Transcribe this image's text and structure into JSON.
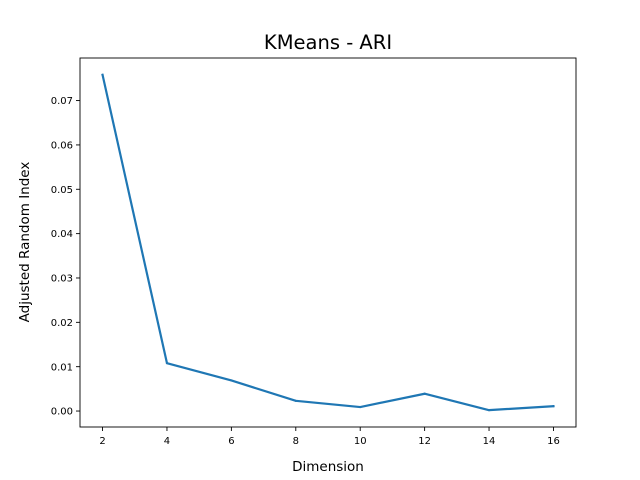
{
  "chart_data": {
    "type": "line",
    "title": "KMeans - ARI",
    "xlabel": "Dimension",
    "ylabel": "Adjusted Random Index",
    "x": [
      2,
      4,
      6,
      8,
      10,
      12,
      14,
      16
    ],
    "series": [
      {
        "values": [
          0.0758,
          0.0108,
          0.0069,
          0.0023,
          0.0009,
          0.0039,
          0.0002,
          0.0011
        ],
        "color": "#1f77b4"
      }
    ],
    "xticks": [
      2,
      4,
      6,
      8,
      10,
      12,
      14,
      16
    ],
    "xtick_labels": [
      "2",
      "4",
      "6",
      "8",
      "10",
      "12",
      "14",
      "16"
    ],
    "yticks": [
      0.0,
      0.01,
      0.02,
      0.03,
      0.04,
      0.05,
      0.06,
      0.07
    ],
    "ytick_labels": [
      "0.00",
      "0.01",
      "0.02",
      "0.03",
      "0.04",
      "0.05",
      "0.06",
      "0.07"
    ],
    "xlim": [
      1.3,
      16.7
    ],
    "ylim": [
      -0.0036,
      0.0796
    ],
    "grid": false,
    "legend": "none"
  }
}
